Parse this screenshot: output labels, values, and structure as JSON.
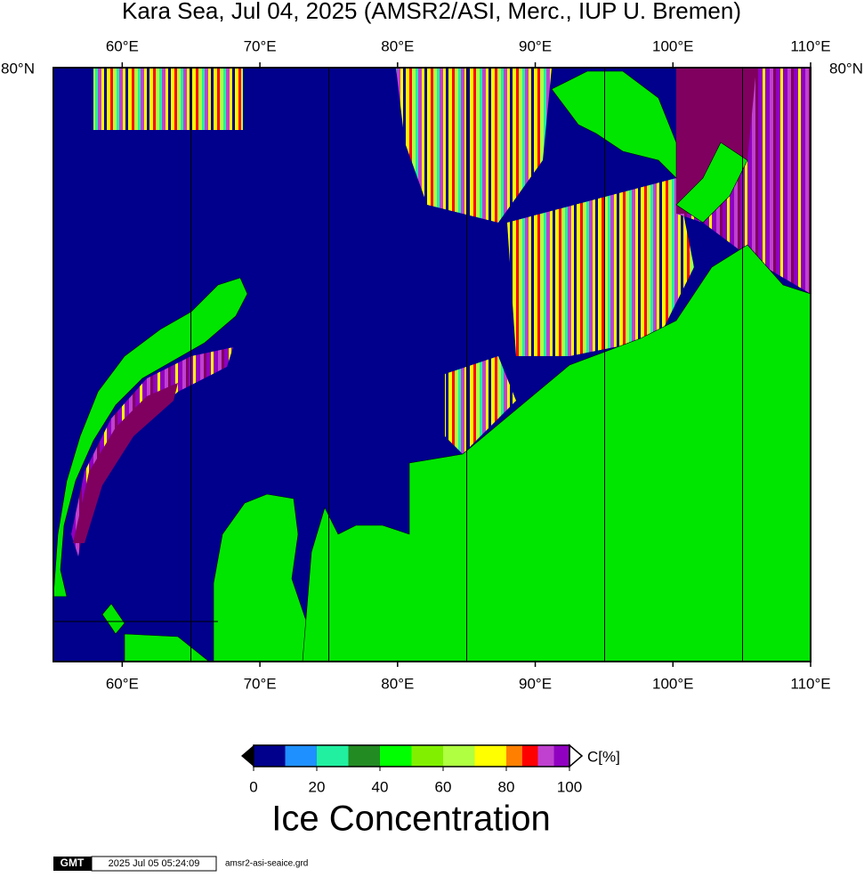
{
  "header": {
    "title": "Kara Sea, Jul 04, 2025 (AMSR2/ASI, Merc., IUP U. Bremen)"
  },
  "map": {
    "lon_range": [
      55,
      110
    ],
    "lon_ticks": [
      {
        "value": 60,
        "label": "60°E"
      },
      {
        "value": 70,
        "label": "70°E"
      },
      {
        "value": 80,
        "label": "80°E"
      },
      {
        "value": 90,
        "label": "90°E"
      },
      {
        "value": 100,
        "label": "100°E"
      },
      {
        "value": 110,
        "label": "110°E"
      }
    ],
    "lat_label": "80°N",
    "ocean_color": "#00008c",
    "land_color": "#00e600"
  },
  "colorbar": {
    "range": [
      0,
      100
    ],
    "bounds": [
      0,
      10,
      20,
      30,
      40,
      50,
      60,
      70,
      80,
      85,
      90,
      95,
      100
    ],
    "colors": [
      "#00008c",
      "#1e90ff",
      "#20f0a0",
      "#228b22",
      "#00ff00",
      "#80f000",
      "#b0ff40",
      "#ffff00",
      "#ff8000",
      "#ff0000",
      "#c040d0",
      "#9000c0"
    ],
    "ticks": [
      0,
      20,
      40,
      60,
      80,
      100
    ],
    "unit": "C[%]",
    "title": "Ice Concentration"
  },
  "footer": {
    "logo": "GMT",
    "timestamp": "2025 Jul 05 05:24:09",
    "file": "amsr2-asi-seaice.grd"
  }
}
